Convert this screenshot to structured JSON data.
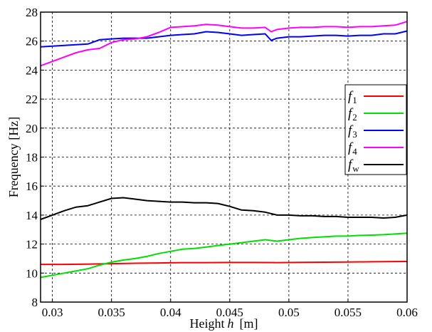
{
  "chart_data": {
    "type": "line",
    "title": "",
    "xlabel": "Height",
    "xlabel_var": "h",
    "xlabel_unit": "[m]",
    "ylabel": "Frequency [Hz]",
    "xlim": [
      0.029,
      0.06
    ],
    "ylim": [
      8,
      28
    ],
    "xticks": [
      0.03,
      0.035,
      0.04,
      0.045,
      0.05,
      0.055,
      0.06
    ],
    "xtick_labels": [
      "0.03",
      "0.035",
      "0.04",
      "0.045",
      "0.05",
      "0.055",
      "0.06"
    ],
    "yticks": [
      8,
      10,
      12,
      14,
      16,
      18,
      20,
      22,
      24,
      26,
      28
    ],
    "ytick_labels": [
      "8",
      "10",
      "12",
      "14",
      "16",
      "18",
      "20",
      "22",
      "24",
      "26",
      "28"
    ],
    "grid": true,
    "legend_position": "right",
    "series": [
      {
        "name": "f",
        "sub": "1",
        "color": "#ff0000",
        "x": [
          0.029,
          0.031,
          0.033,
          0.035,
          0.037,
          0.039,
          0.041,
          0.043,
          0.045,
          0.047,
          0.049,
          0.051,
          0.053,
          0.055,
          0.057,
          0.06
        ],
        "y": [
          10.6,
          10.6,
          10.62,
          10.65,
          10.68,
          10.7,
          10.72,
          10.72,
          10.73,
          10.73,
          10.72,
          10.74,
          10.75,
          10.76,
          10.78,
          10.8
        ]
      },
      {
        "name": "f",
        "sub": "2",
        "color": "#00e000",
        "x": [
          0.029,
          0.031,
          0.033,
          0.034,
          0.035,
          0.036,
          0.037,
          0.038,
          0.039,
          0.04,
          0.041,
          0.042,
          0.043,
          0.044,
          0.045,
          0.046,
          0.047,
          0.048,
          0.049,
          0.05,
          0.051,
          0.052,
          0.053,
          0.054,
          0.055,
          0.056,
          0.057,
          0.058,
          0.059,
          0.06
        ],
        "y": [
          9.7,
          10.0,
          10.3,
          10.55,
          10.75,
          10.9,
          11.0,
          11.15,
          11.35,
          11.5,
          11.65,
          11.7,
          11.8,
          11.9,
          12.0,
          12.1,
          12.2,
          12.3,
          12.2,
          12.3,
          12.4,
          12.45,
          12.5,
          12.55,
          12.55,
          12.6,
          12.62,
          12.65,
          12.7,
          12.75
        ]
      },
      {
        "name": "f",
        "sub": "3",
        "color": "#0000ff",
        "x": [
          0.029,
          0.031,
          0.033,
          0.034,
          0.035,
          0.036,
          0.037,
          0.038,
          0.039,
          0.04,
          0.041,
          0.042,
          0.043,
          0.044,
          0.045,
          0.046,
          0.047,
          0.048,
          0.0485,
          0.049,
          0.05,
          0.051,
          0.052,
          0.053,
          0.054,
          0.055,
          0.056,
          0.057,
          0.058,
          0.059,
          0.06
        ],
        "y": [
          25.6,
          25.7,
          25.8,
          26.1,
          26.15,
          26.2,
          26.2,
          26.2,
          26.3,
          26.4,
          26.45,
          26.5,
          26.65,
          26.6,
          26.5,
          26.4,
          26.45,
          26.5,
          26.05,
          26.2,
          26.3,
          26.3,
          26.35,
          26.4,
          26.4,
          26.35,
          26.4,
          26.4,
          26.5,
          26.5,
          26.7
        ]
      },
      {
        "name": "f",
        "sub": "4",
        "color": "#ff00ff",
        "x": [
          0.029,
          0.03,
          0.031,
          0.032,
          0.033,
          0.034,
          0.035,
          0.036,
          0.037,
          0.038,
          0.039,
          0.04,
          0.041,
          0.042,
          0.043,
          0.044,
          0.045,
          0.046,
          0.047,
          0.048,
          0.0485,
          0.049,
          0.05,
          0.051,
          0.052,
          0.053,
          0.054,
          0.055,
          0.056,
          0.057,
          0.058,
          0.059,
          0.06
        ],
        "y": [
          24.3,
          24.6,
          24.9,
          25.2,
          25.4,
          25.5,
          25.9,
          26.1,
          26.15,
          26.3,
          26.6,
          26.95,
          27.0,
          27.05,
          27.15,
          27.1,
          27.0,
          26.9,
          26.9,
          26.95,
          26.65,
          26.8,
          26.9,
          26.95,
          26.95,
          27.0,
          27.0,
          26.95,
          27.0,
          27.0,
          27.05,
          27.1,
          27.35
        ]
      },
      {
        "name": "f",
        "sub": "w",
        "color": "#000000",
        "x": [
          0.029,
          0.03,
          0.031,
          0.032,
          0.033,
          0.034,
          0.035,
          0.036,
          0.037,
          0.038,
          0.039,
          0.04,
          0.041,
          0.042,
          0.043,
          0.044,
          0.045,
          0.046,
          0.047,
          0.048,
          0.049,
          0.05,
          0.051,
          0.052,
          0.053,
          0.054,
          0.055,
          0.056,
          0.057,
          0.058,
          0.059,
          0.06
        ],
        "y": [
          13.7,
          14.0,
          14.3,
          14.55,
          14.65,
          14.9,
          15.15,
          15.2,
          15.1,
          15.0,
          14.95,
          14.9,
          14.9,
          14.85,
          14.85,
          14.8,
          14.6,
          14.35,
          14.3,
          14.2,
          14.0,
          14.0,
          13.95,
          13.95,
          13.9,
          13.9,
          13.85,
          13.85,
          13.85,
          13.8,
          13.85,
          14.0
        ]
      }
    ]
  }
}
